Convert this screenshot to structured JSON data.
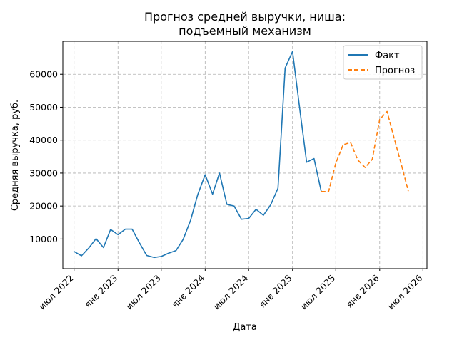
{
  "chart_data": {
    "type": "line",
    "title": [
      "Прогноз средней выручки, ниша:",
      "подъемный механизм"
    ],
    "xlabel": "Дата",
    "ylabel": "Средняя выручка, руб.",
    "grid": true,
    "legend_position": "top-right",
    "xlim": [
      "2022-05-15",
      "2026-07-18"
    ],
    "ylim": [
      1000,
      70000
    ],
    "x_ticks": [
      {
        "date": "2022-07-01",
        "label": "июл 2022"
      },
      {
        "date": "2023-01-01",
        "label": "янв 2023"
      },
      {
        "date": "2023-07-01",
        "label": "июл 2023"
      },
      {
        "date": "2024-01-01",
        "label": "янв 2024"
      },
      {
        "date": "2024-07-01",
        "label": "июл 2024"
      },
      {
        "date": "2025-01-01",
        "label": "янв 2025"
      },
      {
        "date": "2025-07-01",
        "label": "июл 2025"
      },
      {
        "date": "2026-01-01",
        "label": "янв 2026"
      },
      {
        "date": "2026-07-01",
        "label": "июл 2026"
      }
    ],
    "y_ticks": [
      10000,
      20000,
      30000,
      40000,
      50000,
      60000
    ],
    "series": [
      {
        "name": "Факт",
        "color": "#1f77b4",
        "style": "solid",
        "points": [
          [
            "2022-07-01",
            6200
          ],
          [
            "2022-08-01",
            4900
          ],
          [
            "2022-09-01",
            7300
          ],
          [
            "2022-10-01",
            10100
          ],
          [
            "2022-11-01",
            7400
          ],
          [
            "2022-12-01",
            12900
          ],
          [
            "2023-01-01",
            11300
          ],
          [
            "2023-02-01",
            13000
          ],
          [
            "2023-03-01",
            13000
          ],
          [
            "2023-04-01",
            8800
          ],
          [
            "2023-05-01",
            5000
          ],
          [
            "2023-06-01",
            4400
          ],
          [
            "2023-07-01",
            4700
          ],
          [
            "2023-08-01",
            5700
          ],
          [
            "2023-09-01",
            6500
          ],
          [
            "2023-10-01",
            9900
          ],
          [
            "2023-11-01",
            15700
          ],
          [
            "2023-12-01",
            23500
          ],
          [
            "2024-01-01",
            29500
          ],
          [
            "2024-02-01",
            23600
          ],
          [
            "2024-03-01",
            30000
          ],
          [
            "2024-04-01",
            20500
          ],
          [
            "2024-05-01",
            20000
          ],
          [
            "2024-06-01",
            16000
          ],
          [
            "2024-07-01",
            16200
          ],
          [
            "2024-08-01",
            19000
          ],
          [
            "2024-09-01",
            17200
          ],
          [
            "2024-10-01",
            20300
          ],
          [
            "2024-11-01",
            25400
          ],
          [
            "2024-12-01",
            61900
          ],
          [
            "2025-01-01",
            66900
          ],
          [
            "2025-02-01",
            49000
          ],
          [
            "2025-03-01",
            33300
          ],
          [
            "2025-04-01",
            34400
          ],
          [
            "2025-05-01",
            24500
          ]
        ]
      },
      {
        "name": "Прогноз",
        "color": "#ff7f0e",
        "style": "dashed",
        "points": [
          [
            "2025-05-01",
            24400
          ],
          [
            "2025-06-01",
            24400
          ],
          [
            "2025-07-01",
            33000
          ],
          [
            "2025-08-01",
            38600
          ],
          [
            "2025-09-01",
            39300
          ],
          [
            "2025-10-01",
            34000
          ],
          [
            "2025-11-01",
            31700
          ],
          [
            "2025-12-01",
            34200
          ],
          [
            "2026-01-01",
            46300
          ],
          [
            "2026-02-01",
            48700
          ],
          [
            "2026-03-01",
            41000
          ],
          [
            "2026-04-01",
            32800
          ],
          [
            "2026-05-01",
            24500
          ]
        ]
      }
    ]
  }
}
